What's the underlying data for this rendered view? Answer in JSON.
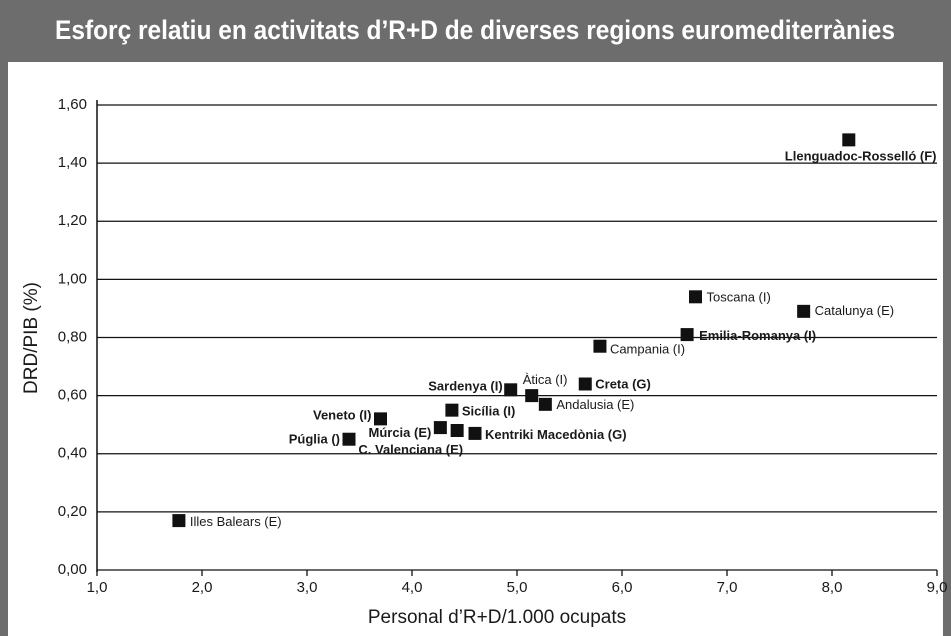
{
  "chart_data": {
    "type": "scatter",
    "title": "Esforç relatiu en activitats d’R+D de diverses regions euromediterrànies",
    "x_label": "Personal d’R+D/1.000 ocupats",
    "y_label": "DRD/PIB (%)",
    "point_labels": [
      "Llenguadoc-Rosselló (F)",
      "Toscana (I)",
      "Catalunya (E)",
      "Emilia-Romanya (I)",
      "Campania (I)",
      "Creta (G)",
      "Àtica (I)",
      "Sardenya (I)",
      "Andalusia (E)",
      "Sicília (I)",
      "Veneto (I)",
      "Múrcia (E)",
      "Kentriki Macedònia (G)",
      "C. Valenciana (E)",
      "Púglia ()",
      "Illes Balears (E)"
    ],
    "x": [
      8.16,
      6.7,
      7.73,
      6.62,
      5.79,
      5.65,
      5.14,
      4.94,
      5.27,
      4.38,
      3.7,
      4.27,
      4.6,
      4.43,
      3.4,
      1.78
    ],
    "values": [
      1.48,
      0.94,
      0.89,
      0.81,
      0.77,
      0.64,
      0.6,
      0.62,
      0.57,
      0.55,
      0.52,
      0.49,
      0.47,
      0.48,
      0.45,
      0.17
    ],
    "color": "#111111",
    "xlim": [
      1.0,
      9.0
    ],
    "xticks": [
      {
        "value": 1,
        "label": "1,0"
      },
      {
        "value": 2,
        "label": "2,0"
      },
      {
        "value": 3,
        "label": "3,0"
      },
      {
        "value": 4,
        "label": "4,0"
      },
      {
        "value": 5,
        "label": "5,0"
      },
      {
        "value": 6,
        "label": "6,0"
      },
      {
        "value": 7,
        "label": "7,0"
      },
      {
        "value": 8,
        "label": "8,0"
      },
      {
        "value": 9,
        "label": "9,0"
      }
    ],
    "ylim": [
      0,
      1.6
    ],
    "yticks": [
      {
        "value": 0,
        "label": "0,00"
      },
      {
        "value": 0.2,
        "label": "0,20"
      },
      {
        "value": 0.4,
        "label": "0,40"
      },
      {
        "value": 0.6,
        "label": "0,60"
      },
      {
        "value": 0.8,
        "label": "0,80"
      },
      {
        "value": 1.0,
        "label": "1,00"
      },
      {
        "value": 1.2,
        "label": "1,20"
      },
      {
        "value": 1.4,
        "label": "1,40"
      },
      {
        "value": 1.6,
        "label": "1,60"
      }
    ],
    "grid": true
  }
}
